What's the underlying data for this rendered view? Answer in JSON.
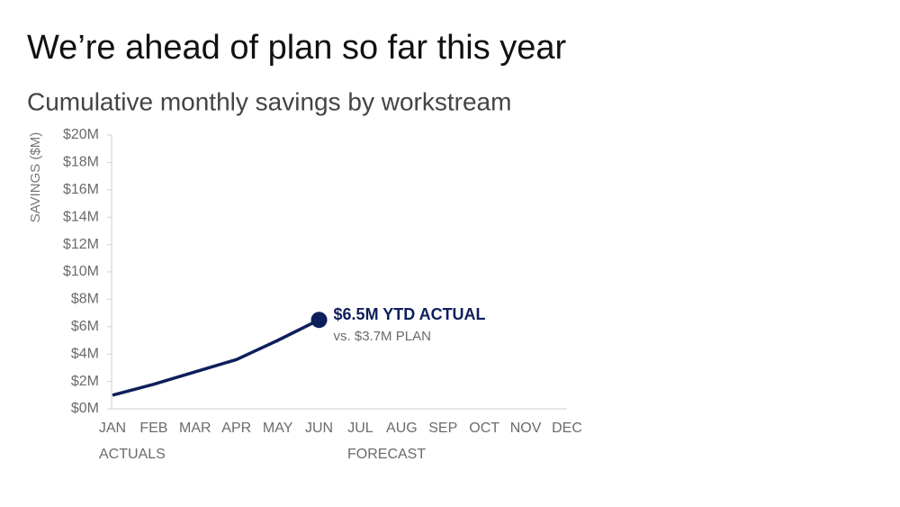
{
  "chart_data": {
    "type": "line",
    "title": "We’re ahead of plan so far this year",
    "subtitle": "Cumulative monthly savings by workstream",
    "y_label": "SAVINGS ($M)",
    "categories": [
      "JAN",
      "FEB",
      "MAR",
      "APR",
      "MAY",
      "JUN",
      "JUL",
      "AUG",
      "SEP",
      "OCT",
      "NOV",
      "DEC"
    ],
    "values": [
      1.0,
      1.8,
      2.7,
      3.6,
      5.0,
      6.5,
      null,
      null,
      null,
      null,
      null,
      null
    ],
    "color": "#0d1f5b",
    "ylim": [
      0,
      20
    ],
    "yticks": [
      {
        "value": 0,
        "label": "$0M"
      },
      {
        "value": 2,
        "label": "$2M"
      },
      {
        "value": 4,
        "label": "$4M"
      },
      {
        "value": 6,
        "label": "$6M"
      },
      {
        "value": 8,
        "label": "$8M"
      },
      {
        "value": 10,
        "label": "$10M"
      },
      {
        "value": 12,
        "label": "$12M"
      },
      {
        "value": 14,
        "label": "$14M"
      },
      {
        "value": 16,
        "label": "$16M"
      },
      {
        "value": 18,
        "label": "$18M"
      },
      {
        "value": 20,
        "label": "$20M"
      }
    ],
    "annotations": [
      "$6.5M YTD ACTUAL",
      "vs. $3.7M PLAN"
    ],
    "period_labels": [
      "ACTUALS",
      "FORECAST"
    ]
  }
}
